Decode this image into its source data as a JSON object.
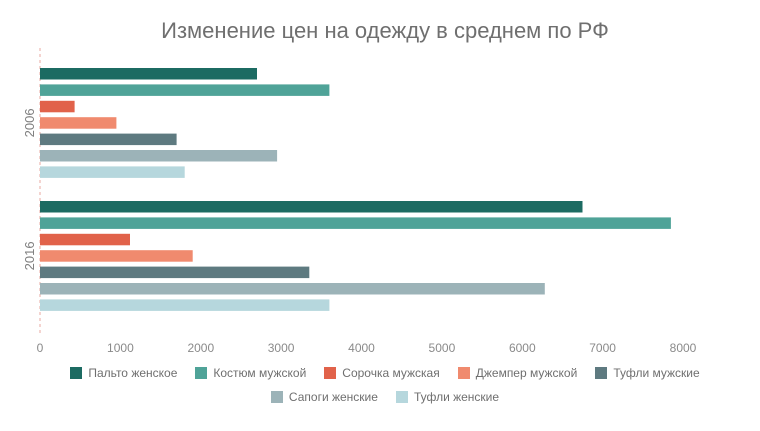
{
  "chart_data": {
    "type": "bar",
    "orientation": "horizontal",
    "title": "Изменение цен на одежду в среднем по РФ",
    "xlabel": "",
    "ylabel": "",
    "xlim": [
      0,
      8000
    ],
    "xticks": [
      0,
      1000,
      2000,
      3000,
      4000,
      5000,
      6000,
      7000,
      8000
    ],
    "grid": false,
    "legend_position": "bottom",
    "categories": [
      "2006",
      "2016"
    ],
    "series": [
      {
        "name": "Пальто женское",
        "color": "#1c6b62",
        "values": [
          2700,
          6750
        ]
      },
      {
        "name": "Костюм мужской",
        "color": "#4fa398",
        "values": [
          3600,
          7850
        ]
      },
      {
        "name": "Сорочка мужская",
        "color": "#e1624a",
        "values": [
          430,
          1120
        ]
      },
      {
        "name": "Джемпер мужской",
        "color": "#f08a6e",
        "values": [
          950,
          1900
        ]
      },
      {
        "name": "Туфли мужские",
        "color": "#5e7a80",
        "values": [
          1700,
          3350
        ]
      },
      {
        "name": "Сапоги женские",
        "color": "#9cb3b8",
        "values": [
          2950,
          6280
        ]
      },
      {
        "name": "Туфли женские",
        "color": "#b6d7dd",
        "values": [
          1800,
          3600
        ]
      }
    ]
  }
}
